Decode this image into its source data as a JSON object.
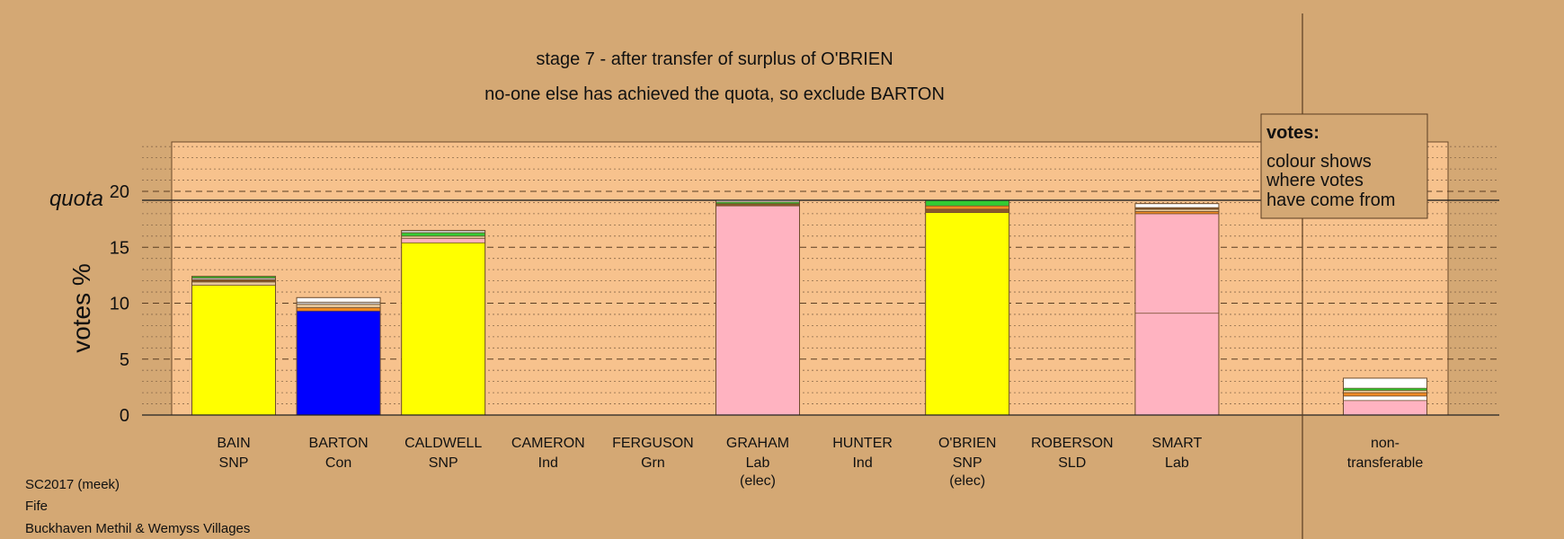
{
  "colors": {
    "background": "#d4a874",
    "plot_area": "#f7c28d",
    "SNP": "#ffff00",
    "Con": "#0000ff",
    "Lab": "#ffb3c1",
    "transfer_white": "#ffffff",
    "transfer_orange": "#f08a24",
    "transfer_green": "#33cc33",
    "transfer_grey": "#c9c9c9",
    "transfer_brown": "#8b5a2b",
    "transfer_tan": "#e6c79a"
  },
  "chart_data": {
    "type": "bar",
    "stacked": true,
    "title": "stage 7 - after transfer of surplus of O'BRIEN",
    "subtitle": "no-one else has achieved the quota, so exclude BARTON",
    "ylabel": "votes %",
    "ylim": [
      0,
      25
    ],
    "yticks": [
      0,
      5,
      10,
      15,
      20
    ],
    "quota_label": "quota",
    "quota": 19.2,
    "grid": true,
    "legend": {
      "position": "top-right",
      "title": "votes:",
      "lines": [
        "colour shows",
        "where votes",
        "have come from"
      ]
    },
    "candidates": [
      {
        "name": "BAIN",
        "party": "SNP",
        "status": "",
        "total": 12.4,
        "segments": [
          {
            "value": 11.6,
            "color": "#ffff00"
          },
          {
            "value": 0.3,
            "color": "#e6c79a"
          },
          {
            "value": 0.2,
            "color": "#8b5a2b"
          },
          {
            "value": 0.15,
            "color": "#c9c9c9"
          },
          {
            "value": 0.15,
            "color": "#33cc33"
          }
        ]
      },
      {
        "name": "BARTON",
        "party": "Con",
        "status": "",
        "total": 10.5,
        "segments": [
          {
            "value": 9.3,
            "color": "#0000ff"
          },
          {
            "value": 0.3,
            "color": "#f08a24"
          },
          {
            "value": 0.3,
            "color": "#e6c79a"
          },
          {
            "value": 0.2,
            "color": "#c9c9c9"
          },
          {
            "value": 0.4,
            "color": "#ffffff"
          }
        ]
      },
      {
        "name": "CALDWELL",
        "party": "SNP",
        "status": "",
        "total": 16.5,
        "segments": [
          {
            "value": 15.4,
            "color": "#ffff00"
          },
          {
            "value": 0.4,
            "color": "#ffb3c1"
          },
          {
            "value": 0.2,
            "color": "#e6c79a"
          },
          {
            "value": 0.3,
            "color": "#33cc33"
          },
          {
            "value": 0.2,
            "color": "#c9c9c9"
          }
        ]
      },
      {
        "name": "CAMERON",
        "party": "Ind",
        "status": "",
        "total": 0,
        "segments": []
      },
      {
        "name": "FERGUSON",
        "party": "Grn",
        "status": "",
        "total": 0,
        "segments": []
      },
      {
        "name": "GRAHAM",
        "party": "Lab",
        "status": "(elec)",
        "total": 19.2,
        "segments": [
          {
            "value": 18.7,
            "color": "#ffb3c1"
          },
          {
            "value": 0.2,
            "color": "#8b5a2b"
          },
          {
            "value": 0.15,
            "color": "#33cc33"
          },
          {
            "value": 0.15,
            "color": "#ffffff"
          }
        ]
      },
      {
        "name": "HUNTER",
        "party": "Ind",
        "status": "",
        "total": 0,
        "segments": []
      },
      {
        "name": "O'BRIEN",
        "party": "SNP",
        "status": "(elec)",
        "total": 19.2,
        "segments": [
          {
            "value": 18.1,
            "color": "#ffff00"
          },
          {
            "value": 0.3,
            "color": "#8b5a2b"
          },
          {
            "value": 0.3,
            "color": "#f08a24"
          },
          {
            "value": 0.5,
            "color": "#33cc33"
          }
        ]
      },
      {
        "name": "ROBERSON",
        "party": "SLD",
        "status": "",
        "total": 0,
        "segments": []
      },
      {
        "name": "SMART",
        "party": "Lab",
        "status": "",
        "total": 18.9,
        "segments": [
          {
            "value": 9.1,
            "color": "#ffb3c1"
          },
          {
            "value": 8.9,
            "color": "#ffb3c1"
          },
          {
            "value": 0.2,
            "color": "#f08a24"
          },
          {
            "value": 0.2,
            "color": "#e6c79a"
          },
          {
            "value": 0.15,
            "color": "#8b5a2b"
          },
          {
            "value": 0.35,
            "color": "#ffffff"
          }
        ]
      }
    ],
    "nontransferable": {
      "label1": "non-",
      "label2": "transferable",
      "total": 3.3,
      "segments": [
        {
          "value": 1.3,
          "color": "#ffb3c1"
        },
        {
          "value": 0.4,
          "color": "#ffffff"
        },
        {
          "value": 0.3,
          "color": "#f08a24"
        },
        {
          "value": 0.2,
          "color": "#e6c79a"
        },
        {
          "value": 0.2,
          "color": "#33cc33"
        },
        {
          "value": 0.9,
          "color": "#ffffff"
        }
      ]
    }
  },
  "footer": {
    "line1": "SC2017 (meek)",
    "line2": "Fife",
    "line3": "Buckhaven Methil & Wemyss Villages"
  }
}
